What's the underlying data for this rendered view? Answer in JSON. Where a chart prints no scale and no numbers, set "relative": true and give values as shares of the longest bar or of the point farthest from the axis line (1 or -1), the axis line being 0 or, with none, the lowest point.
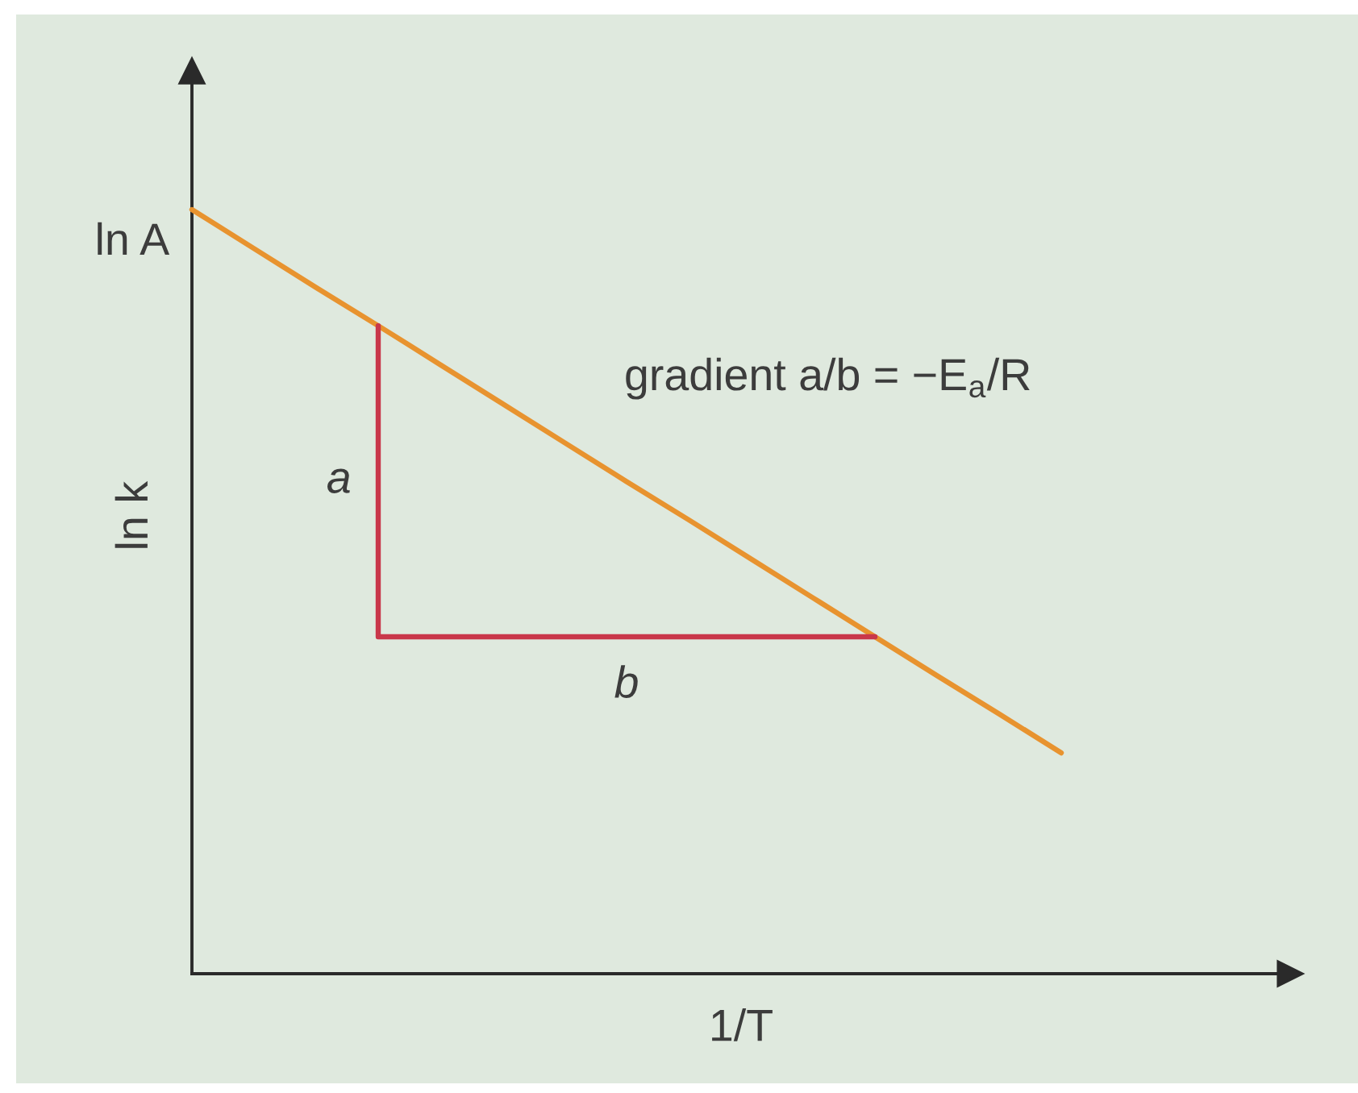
{
  "chart_data": {
    "type": "line",
    "relative": true,
    "xlabel": "1/T",
    "ylabel": "ln k",
    "categories": [
      null,
      null,
      null,
      null,
      null,
      null,
      null,
      null,
      null,
      null,
      null,
      null,
      null,
      null,
      null
    ],
    "series": [
      {
        "color": "#e8932f",
        "values": [
          1.0,
          0.949,
          0.898,
          0.848,
          0.797,
          0.746,
          0.695,
          0.644,
          0.594,
          0.543,
          0.492,
          0.441,
          0.39,
          0.34,
          0.289
        ]
      },
      {
        "type": "step",
        "color": "#c9374a",
        "values": [
          null,
          null,
          null,
          0.848,
          0.441,
          0.441,
          0.441,
          0.441,
          0.441,
          0.441,
          0.441,
          0.441,
          null,
          null,
          null
        ]
      }
    ],
    "annotations": [
      "ln A",
      "a",
      "b",
      "gradient a/b = −E$_{a}$/R"
    ]
  }
}
